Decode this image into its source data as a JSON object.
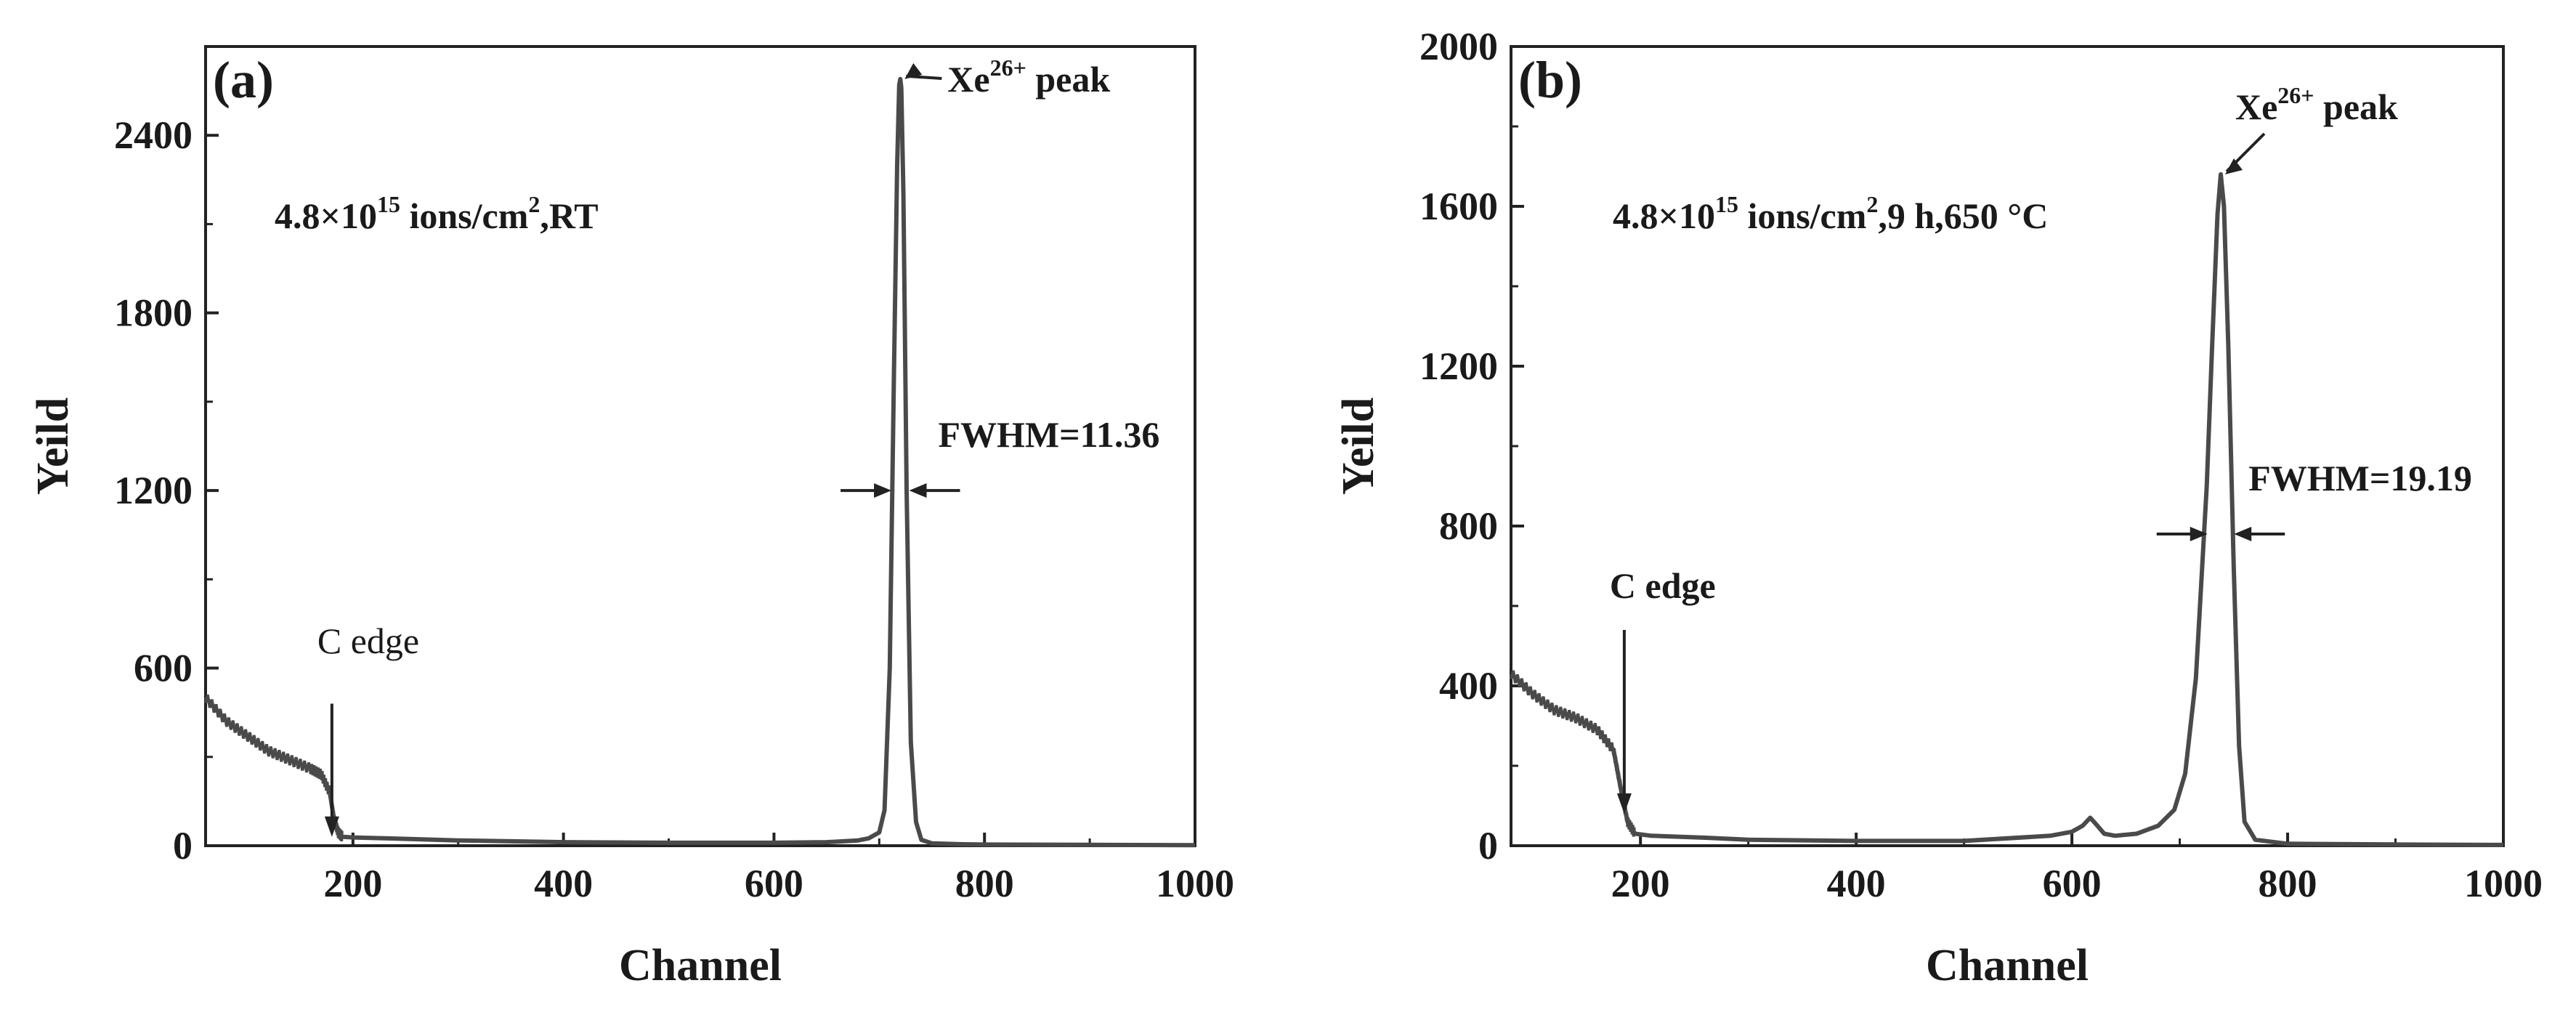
{
  "chart_data": [
    {
      "type": "line",
      "panel_label": "(a)",
      "xlabel": "Channel",
      "ylabel": "Yeild",
      "xlim": [
        60,
        1000
      ],
      "ylim": [
        0,
        2700
      ],
      "xticks": [
        200,
        400,
        600,
        800,
        1000
      ],
      "yticks": [
        0,
        600,
        1200,
        1800,
        2400
      ],
      "condition": {
        "prefix": "4.8×10",
        "exp": "15",
        "mid": " ions/cm",
        "exp2": "2",
        "suffix": ",RT"
      },
      "peak_label": {
        "base": "Xe",
        "sup": "26+",
        "rest": " peak"
      },
      "fwhm_label": "FWHM=11.36",
      "edge_label": "C edge",
      "edge_x": 180,
      "peak_x": 720,
      "peak_y": 2590,
      "fwhm": 11.36,
      "fwhm_arrow_y": 1200,
      "series": [
        {
          "name": "spectrum",
          "x": [
            60,
            80,
            100,
            120,
            140,
            160,
            170,
            178,
            182,
            186,
            190,
            200,
            230,
            260,
            300,
            400,
            500,
            600,
            650,
            680,
            690,
            700,
            705,
            710,
            714,
            717,
            719,
            720,
            721,
            723,
            726,
            730,
            735,
            740,
            750,
            780,
            800,
            900,
            1000
          ],
          "y": [
            500,
            420,
            370,
            320,
            290,
            260,
            240,
            180,
            90,
            45,
            30,
            28,
            25,
            22,
            18,
            12,
            10,
            10,
            12,
            18,
            25,
            45,
            120,
            600,
            1600,
            2300,
            2570,
            2590,
            2560,
            2200,
            1200,
            350,
            80,
            20,
            8,
            5,
            4,
            3,
            2
          ]
        }
      ]
    },
    {
      "type": "line",
      "panel_label": "(b)",
      "xlabel": "Channel",
      "ylabel": "Yeild",
      "xlim": [
        80,
        1000
      ],
      "ylim": [
        0,
        2000
      ],
      "xticks": [
        200,
        400,
        600,
        800,
        1000
      ],
      "yticks": [
        0,
        400,
        800,
        1200,
        1600,
        2000
      ],
      "condition": {
        "prefix": "4.8×10",
        "exp": "15",
        "mid": " ions/cm",
        "exp2": "2",
        "suffix": ",9 h,650 °C"
      },
      "peak_label": {
        "base": "Xe",
        "sup": "26+",
        "rest": " peak"
      },
      "fwhm_label": "FWHM=19.19",
      "edge_label": "C edge",
      "edge_x": 185,
      "peak_x": 738,
      "peak_y": 1680,
      "fwhm": 19.19,
      "fwhm_arrow_y": 780,
      "series": [
        {
          "name": "spectrum",
          "x": [
            80,
            100,
            120,
            140,
            160,
            175,
            182,
            188,
            195,
            210,
            260,
            300,
            400,
            500,
            580,
            600,
            610,
            617,
            622,
            630,
            640,
            660,
            680,
            695,
            705,
            715,
            725,
            730,
            735,
            738,
            741,
            745,
            750,
            755,
            760,
            770,
            800,
            900,
            1000
          ],
          "y": [
            430,
            380,
            340,
            320,
            290,
            240,
            140,
            60,
            30,
            25,
            20,
            15,
            12,
            12,
            25,
            35,
            50,
            70,
            55,
            30,
            25,
            30,
            50,
            90,
            180,
            420,
            900,
            1250,
            1580,
            1680,
            1600,
            1250,
            700,
            250,
            60,
            15,
            5,
            3,
            2
          ]
        }
      ]
    }
  ]
}
